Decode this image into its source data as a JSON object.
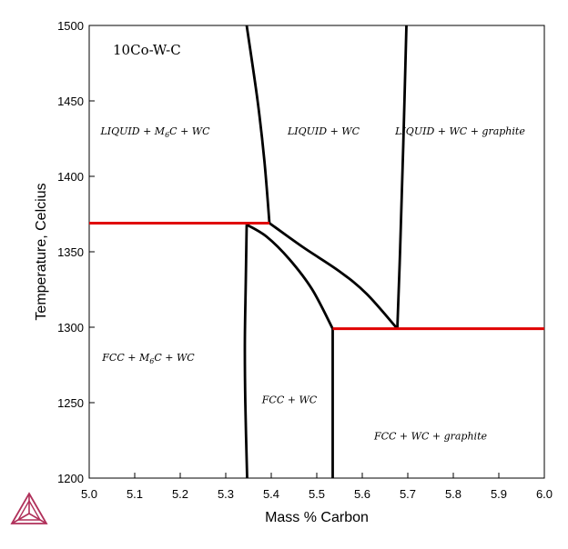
{
  "chart_data": {
    "type": "line",
    "title": "10Co-W-C",
    "xlabel": "Mass % Carbon",
    "ylabel": "Temperature, Celcius",
    "xlim": [
      5.0,
      6.0
    ],
    "ylim": [
      1200,
      1500
    ],
    "xticks": [
      "5.0",
      "5.1",
      "5.2",
      "5.3",
      "5.4",
      "5.5",
      "5.6",
      "5.7",
      "5.8",
      "5.9",
      "6.0"
    ],
    "yticks": [
      "1200",
      "1250",
      "1300",
      "1350",
      "1400",
      "1450",
      "1500"
    ],
    "grid": false,
    "legend": "none",
    "colors": {
      "boundary": "#000000",
      "invariant": "#e00000",
      "logo": "#b0305a"
    },
    "series": [
      {
        "kind": "boundary",
        "points": [
          [
            5.346,
            1500
          ],
          [
            5.37,
            1450
          ],
          [
            5.385,
            1410
          ],
          [
            5.396,
            1369
          ]
        ]
      },
      {
        "kind": "boundary",
        "points": [
          [
            5.697,
            1500
          ],
          [
            5.69,
            1420
          ],
          [
            5.683,
            1350
          ],
          [
            5.677,
            1299
          ]
        ]
      },
      {
        "kind": "boundary",
        "points": [
          [
            5.396,
            1369
          ],
          [
            5.47,
            1353
          ],
          [
            5.55,
            1337
          ],
          [
            5.61,
            1322
          ],
          [
            5.677,
            1299
          ]
        ]
      },
      {
        "kind": "boundary",
        "points": [
          [
            5.346,
            1368
          ],
          [
            5.39,
            1360
          ],
          [
            5.44,
            1345
          ],
          [
            5.49,
            1325
          ],
          [
            5.535,
            1299
          ]
        ]
      },
      {
        "kind": "boundary",
        "points": [
          [
            5.346,
            1368
          ],
          [
            5.344,
            1330
          ],
          [
            5.342,
            1290
          ],
          [
            5.343,
            1250
          ],
          [
            5.347,
            1200
          ]
        ]
      },
      {
        "kind": "boundary",
        "points": [
          [
            5.535,
            1299
          ],
          [
            5.535,
            1200
          ]
        ]
      },
      {
        "kind": "invariant",
        "points": [
          [
            5.0,
            1369
          ],
          [
            5.396,
            1369
          ]
        ]
      },
      {
        "kind": "invariant",
        "points": [
          [
            5.535,
            1299
          ],
          [
            6.0,
            1299
          ]
        ]
      }
    ],
    "annotations": [
      {
        "main": "LIQUID + M",
        "sub": "6",
        "rest": "C + WC",
        "x": 5.145,
        "y": 1430
      },
      {
        "main": "LIQUID + WC",
        "sub": "",
        "rest": "",
        "x": 5.515,
        "y": 1430
      },
      {
        "main": "LIQUID + WC + graphite",
        "sub": "",
        "rest": "",
        "x": 5.815,
        "y": 1430
      },
      {
        "main": "FCC + M",
        "sub": "6",
        "rest": "C + WC",
        "x": 5.13,
        "y": 1280
      },
      {
        "main": "FCC + WC",
        "sub": "",
        "rest": "",
        "x": 5.44,
        "y": 1252
      },
      {
        "main": "FCC + WC + graphite",
        "sub": "",
        "rest": "",
        "x": 5.75,
        "y": 1228
      }
    ]
  }
}
